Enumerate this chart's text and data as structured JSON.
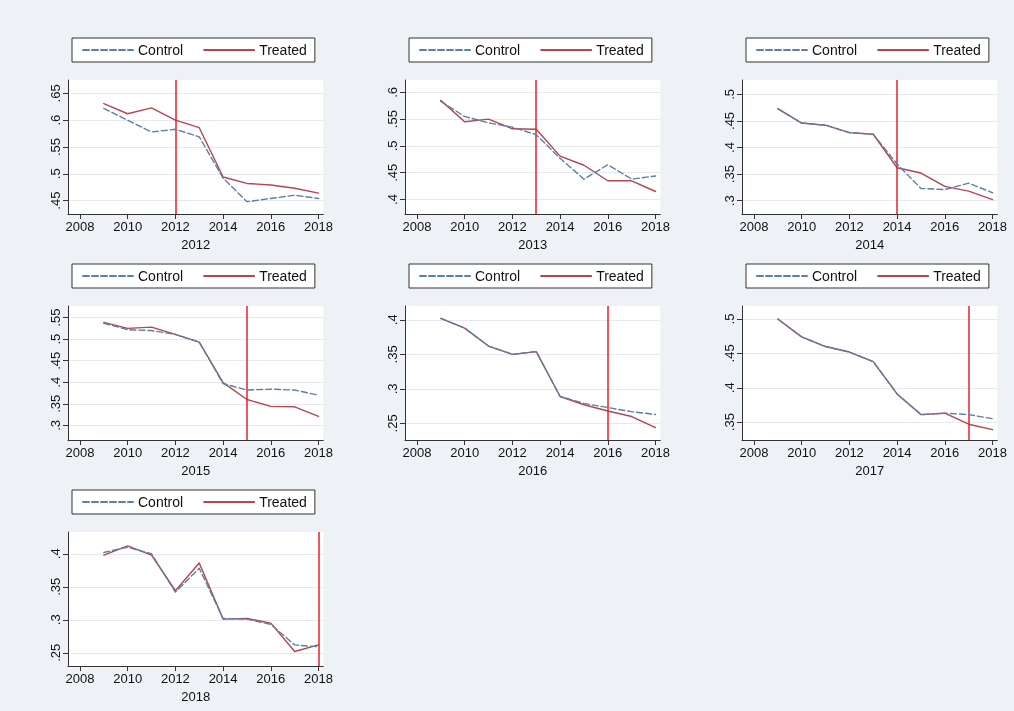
{
  "chart_data": [
    {
      "type": "line",
      "xlabel": "2012",
      "x": [
        2009,
        2010,
        2011,
        2012,
        2013,
        2014,
        2015,
        2016,
        2017,
        2018
      ],
      "xlim": [
        2007.5,
        2018.2
      ],
      "xticks": [
        2008,
        2010,
        2012,
        2014,
        2016,
        2018
      ],
      "ylim": [
        0.425,
        0.675
      ],
      "yticks": [
        {
          "value": 0.45,
          "label": ".45"
        },
        {
          "value": 0.5,
          "label": ".5"
        },
        {
          "value": 0.55,
          "label": ".55"
        },
        {
          "value": 0.6,
          "label": ".6"
        },
        {
          "value": 0.65,
          "label": ".65"
        }
      ],
      "grid": "y",
      "legend": "top",
      "marker": "none",
      "series": [
        {
          "name": "Control",
          "color": "#5b7fa6",
          "line_style": "dashed",
          "values": [
            0.622,
            0.6,
            0.578,
            0.583,
            0.569,
            0.492,
            0.448,
            0.454,
            0.46,
            0.454
          ]
        },
        {
          "name": "Treated",
          "color": "#b5454f",
          "line_style": "solid",
          "values": [
            0.631,
            0.612,
            0.623,
            0.6,
            0.586,
            0.494,
            0.482,
            0.479,
            0.473,
            0.464
          ]
        }
      ],
      "ref_lines": [
        {
          "axis": "x",
          "value": 2012,
          "color": "#e8202a"
        }
      ]
    },
    {
      "type": "line",
      "xlabel": "2013",
      "x": [
        2009,
        2010,
        2011,
        2012,
        2013,
        2014,
        2015,
        2016,
        2017,
        2018
      ],
      "xlim": [
        2007.5,
        2018.2
      ],
      "xticks": [
        2008,
        2010,
        2012,
        2014,
        2016,
        2018
      ],
      "ylim": [
        0.373,
        0.623
      ],
      "yticks": [
        {
          "value": 0.4,
          "label": ".4"
        },
        {
          "value": 0.45,
          "label": ".45"
        },
        {
          "value": 0.5,
          "label": ".5"
        },
        {
          "value": 0.55,
          "label": ".55"
        },
        {
          "value": 0.6,
          "label": ".6"
        }
      ],
      "grid": "y",
      "legend": "top",
      "marker": "none",
      "series": [
        {
          "name": "Control",
          "color": "#5b7fa6",
          "line_style": "dashed",
          "values": [
            0.583,
            0.555,
            0.543,
            0.535,
            0.521,
            0.477,
            0.438,
            0.465,
            0.438,
            0.444
          ]
        },
        {
          "name": "Treated",
          "color": "#b5454f",
          "line_style": "solid",
          "values": [
            0.585,
            0.545,
            0.55,
            0.532,
            0.531,
            0.481,
            0.464,
            0.435,
            0.435,
            0.415
          ]
        }
      ],
      "ref_lines": [
        {
          "axis": "x",
          "value": 2013,
          "color": "#e8202a"
        }
      ]
    },
    {
      "type": "line",
      "xlabel": "2014",
      "x": [
        2009,
        2010,
        2011,
        2012,
        2013,
        2014,
        2015,
        2016,
        2017,
        2018
      ],
      "xlim": [
        2007.5,
        2018.2
      ],
      "xticks": [
        2008,
        2010,
        2012,
        2014,
        2016,
        2018
      ],
      "ylim": [
        0.275,
        0.527
      ],
      "yticks": [
        {
          "value": 0.3,
          "label": ".3"
        },
        {
          "value": 0.35,
          "label": ".35"
        },
        {
          "value": 0.4,
          "label": ".4"
        },
        {
          "value": 0.45,
          "label": ".45"
        },
        {
          "value": 0.5,
          "label": ".5"
        }
      ],
      "grid": "y",
      "legend": "top",
      "marker": "none",
      "series": [
        {
          "name": "Control",
          "color": "#5b7fa6",
          "line_style": "dashed",
          "values": [
            0.473,
            0.446,
            0.442,
            0.428,
            0.425,
            0.369,
            0.323,
            0.321,
            0.333,
            0.315
          ]
        },
        {
          "name": "Treated",
          "color": "#b5454f",
          "line_style": "solid",
          "values": [
            0.473,
            0.446,
            0.442,
            0.428,
            0.425,
            0.362,
            0.352,
            0.327,
            0.318,
            0.302
          ]
        }
      ],
      "ref_lines": [
        {
          "axis": "x",
          "value": 2014,
          "color": "#e8202a"
        }
      ]
    },
    {
      "type": "line",
      "xlabel": "2015",
      "x": [
        2009,
        2010,
        2011,
        2012,
        2013,
        2014,
        2015,
        2016,
        2017,
        2018
      ],
      "xlim": [
        2007.5,
        2018.2
      ],
      "xticks": [
        2008,
        2010,
        2012,
        2014,
        2016,
        2018
      ],
      "ylim": [
        0.266,
        0.577
      ],
      "yticks": [
        {
          "value": 0.3,
          "label": ".3"
        },
        {
          "value": 0.35,
          "label": ".35"
        },
        {
          "value": 0.4,
          "label": ".4"
        },
        {
          "value": 0.45,
          "label": ".45"
        },
        {
          "value": 0.5,
          "label": ".5"
        },
        {
          "value": 0.55,
          "label": ".55"
        }
      ],
      "grid": "y",
      "legend": "top",
      "marker": "none",
      "series": [
        {
          "name": "Control",
          "color": "#5b7fa6",
          "line_style": "dashed",
          "values": [
            0.537,
            0.522,
            0.52,
            0.511,
            0.493,
            0.397,
            0.382,
            0.384,
            0.382,
            0.37
          ]
        },
        {
          "name": "Treated",
          "color": "#b5454f",
          "line_style": "solid",
          "values": [
            0.539,
            0.525,
            0.528,
            0.511,
            0.493,
            0.399,
            0.36,
            0.344,
            0.343,
            0.321
          ]
        }
      ],
      "ref_lines": [
        {
          "axis": "x",
          "value": 2015,
          "color": "#e8202a"
        }
      ]
    },
    {
      "type": "line",
      "xlabel": "2016",
      "x": [
        2009,
        2010,
        2011,
        2012,
        2013,
        2014,
        2015,
        2016,
        2017,
        2018
      ],
      "xlim": [
        2007.5,
        2018.2
      ],
      "xticks": [
        2008,
        2010,
        2012,
        2014,
        2016,
        2018
      ],
      "ylim": [
        0.226,
        0.42
      ],
      "yticks": [
        {
          "value": 0.25,
          "label": ".25"
        },
        {
          "value": 0.3,
          "label": ".3"
        },
        {
          "value": 0.35,
          "label": ".35"
        },
        {
          "value": 0.4,
          "label": ".4"
        }
      ],
      "grid": "y",
      "legend": "top",
      "marker": "none",
      "series": [
        {
          "name": "Control",
          "color": "#5b7fa6",
          "line_style": "dashed",
          "values": [
            0.402,
            0.388,
            0.362,
            0.35,
            0.354,
            0.289,
            0.279,
            0.273,
            0.267,
            0.263
          ]
        },
        {
          "name": "Treated",
          "color": "#b5454f",
          "line_style": "solid",
          "values": [
            0.402,
            0.388,
            0.362,
            0.35,
            0.354,
            0.289,
            0.277,
            0.268,
            0.26,
            0.244
          ]
        }
      ],
      "ref_lines": [
        {
          "axis": "x",
          "value": 2016,
          "color": "#e8202a"
        }
      ]
    },
    {
      "type": "line",
      "xlabel": "2017",
      "x": [
        2009,
        2010,
        2011,
        2012,
        2013,
        2014,
        2015,
        2016,
        2017,
        2018
      ],
      "xlim": [
        2007.5,
        2018.2
      ],
      "xticks": [
        2008,
        2010,
        2012,
        2014,
        2016,
        2018
      ],
      "ylim": [
        0.324,
        0.519
      ],
      "yticks": [
        {
          "value": 0.35,
          "label": ".35"
        },
        {
          "value": 0.4,
          "label": ".4"
        },
        {
          "value": 0.45,
          "label": ".45"
        },
        {
          "value": 0.5,
          "label": ".5"
        }
      ],
      "grid": "y",
      "legend": "top",
      "marker": "none",
      "series": [
        {
          "name": "Control",
          "color": "#5b7fa6",
          "line_style": "dashed",
          "values": [
            0.5,
            0.474,
            0.46,
            0.452,
            0.438,
            0.391,
            0.361,
            0.363,
            0.361,
            0.355
          ]
        },
        {
          "name": "Treated",
          "color": "#b5454f",
          "line_style": "solid",
          "values": [
            0.5,
            0.474,
            0.46,
            0.452,
            0.438,
            0.391,
            0.361,
            0.363,
            0.347,
            0.339
          ]
        }
      ],
      "ref_lines": [
        {
          "axis": "x",
          "value": 2017,
          "color": "#e8202a"
        }
      ]
    },
    {
      "type": "line",
      "xlabel": "2018",
      "x": [
        2009,
        2010,
        2011,
        2012,
        2013,
        2014,
        2015,
        2016,
        2017,
        2018
      ],
      "xlim": [
        2007.5,
        2018.2
      ],
      "xticks": [
        2008,
        2010,
        2012,
        2014,
        2016,
        2018
      ],
      "ylim": [
        0.23,
        0.433
      ],
      "yticks": [
        {
          "value": 0.25,
          "label": ".25"
        },
        {
          "value": 0.3,
          "label": ".3"
        },
        {
          "value": 0.35,
          "label": ".35"
        },
        {
          "value": 0.4,
          "label": ".4"
        }
      ],
      "grid": "y",
      "legend": "top",
      "marker": "none",
      "series": [
        {
          "name": "Control",
          "color": "#5b7fa6",
          "line_style": "dashed",
          "values": [
            0.402,
            0.41,
            0.4,
            0.342,
            0.378,
            0.302,
            0.301,
            0.293,
            0.262,
            0.259
          ]
        },
        {
          "name": "Treated",
          "color": "#b5454f",
          "line_style": "solid",
          "values": [
            0.398,
            0.412,
            0.398,
            0.344,
            0.386,
            0.301,
            0.302,
            0.295,
            0.252,
            0.262
          ]
        }
      ],
      "ref_lines": [
        {
          "axis": "x",
          "value": 2018,
          "color": "#e8202a"
        }
      ]
    }
  ]
}
